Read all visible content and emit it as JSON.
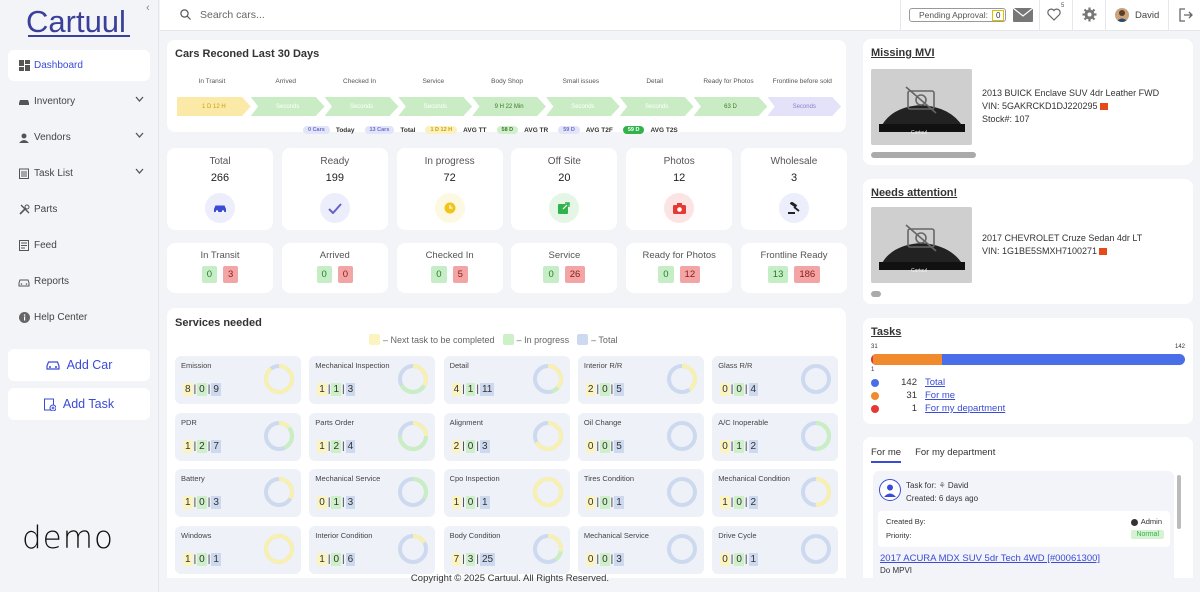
{
  "brand": {
    "logo_text": "Cartuul",
    "demo_text": "demo"
  },
  "sidebar": {
    "items": [
      {
        "label": "Dashboard",
        "icon": "dashboard-icon",
        "active": true
      },
      {
        "label": "Inventory",
        "icon": "car-icon",
        "expandable": true
      },
      {
        "label": "Vendors",
        "icon": "person-icon",
        "expandable": true
      },
      {
        "label": "Task List",
        "icon": "clipboard-icon",
        "expandable": true
      },
      {
        "label": "Parts",
        "icon": "tools-icon"
      },
      {
        "label": "Feed",
        "icon": "feed-icon"
      },
      {
        "label": "Reports",
        "icon": "car-report-icon"
      },
      {
        "label": "Help Center",
        "icon": "info-icon"
      }
    ],
    "add_car": "Add Car",
    "add_task": "Add Task"
  },
  "topbar": {
    "search_placeholder": "Search cars...",
    "pending_label": "Pending Approval:",
    "pending_value": "0",
    "heart_count": "5",
    "user_name": "David"
  },
  "recon": {
    "title": "Cars Reconed Last 30 Days",
    "stages": [
      {
        "label": "In Transit",
        "value": "1 D 12 H",
        "color": "#fbe9a8",
        "text_color": "#c9a400"
      },
      {
        "label": "Arrived",
        "value": "Seconds",
        "color": "#c9ecc4",
        "text_color": "#ffffff"
      },
      {
        "label": "Checked In",
        "value": "Seconds",
        "color": "#c9ecc4",
        "text_color": "#ffffff"
      },
      {
        "label": "Service",
        "value": "Seconds",
        "color": "#c9ecc4",
        "text_color": "#ffffff"
      },
      {
        "label": "Body Shop",
        "value": "9 H 22 Min",
        "color": "#c9ecc4",
        "text_color": "#3a7a2b"
      },
      {
        "label": "Small issues",
        "value": "Seconds",
        "color": "#c9ecc4",
        "text_color": "#ffffff"
      },
      {
        "label": "Detail",
        "value": "Seconds",
        "color": "#c9ecc4",
        "text_color": "#ffffff"
      },
      {
        "label": "Ready for Photos",
        "value": "63 D",
        "color": "#c9ecc4",
        "text_color": "#3a7a2b"
      },
      {
        "label": "Frontline before sold",
        "value": "Seconds",
        "color": "#e4e2f8",
        "text_color": "#8a80d0"
      }
    ],
    "summary": [
      {
        "pill": "0 Cars",
        "text": "Today",
        "bg": "#e2e4f7",
        "fg": "#6a6fd0"
      },
      {
        "pill": "13 Cars",
        "text": "Total",
        "bg": "#e2e4f7",
        "fg": "#6a6fd0"
      },
      {
        "pill": "1 D 12 H",
        "text": "AVG TT",
        "bg": "#fbf0c0",
        "fg": "#c9a400"
      },
      {
        "pill": "58 D",
        "text": "AVG TR",
        "bg": "#d0efcb",
        "fg": "#3a7a2b"
      },
      {
        "pill": "59 D",
        "text": "AVG T2F",
        "bg": "#e2e4f7",
        "fg": "#6a6fd0"
      },
      {
        "pill": "59 D",
        "text": "AVG T2S",
        "bg": "#2fb34a",
        "fg": "#ffffff"
      }
    ]
  },
  "stats": [
    {
      "label": "Total",
      "value": "266",
      "icon": "car-icon",
      "circle": "#eceefc",
      "color": "#3a4bd6"
    },
    {
      "label": "Ready",
      "value": "199",
      "icon": "check-icon",
      "circle": "#eceefc",
      "color": "#6b5fd0"
    },
    {
      "label": "In progress",
      "value": "72",
      "icon": "progress-icon",
      "circle": "#fdf8e2",
      "color": "#f0c419"
    },
    {
      "label": "Off Site",
      "value": "20",
      "icon": "external-icon",
      "circle": "#e6f6e6",
      "color": "#2fb34a"
    },
    {
      "label": "Photos",
      "value": "12",
      "icon": "camera-icon",
      "circle": "#fde4e4",
      "color": "#e53935"
    },
    {
      "label": "Wholesale",
      "value": "3",
      "icon": "gavel-icon",
      "circle": "#eceefc",
      "color": "#222"
    }
  ],
  "pipeline_counts": [
    {
      "label": "In Transit",
      "green": "0",
      "red": "3"
    },
    {
      "label": "Arrived",
      "green": "0",
      "red": "0"
    },
    {
      "label": "Checked In",
      "green": "0",
      "red": "5"
    },
    {
      "label": "Service",
      "green": "0",
      "red": "26"
    },
    {
      "label": "Ready for Photos",
      "green": "0",
      "red": "12"
    },
    {
      "label": "Frontline Ready",
      "green": "13",
      "red": "186"
    }
  ],
  "services": {
    "title": "Services needed",
    "legend": [
      {
        "label": "– Next task to be completed",
        "color": "#fbf4c0"
      },
      {
        "label": "– In progress",
        "color": "#cdf0c8"
      },
      {
        "label": "– Total",
        "color": "#cdd9ee"
      }
    ],
    "items": [
      {
        "name": "Emission",
        "next": "8",
        "prog": "0",
        "total": "9"
      },
      {
        "name": "Mechanical Inspection",
        "next": "1",
        "prog": "1",
        "total": "3"
      },
      {
        "name": "Detail",
        "next": "4",
        "prog": "1",
        "total": "11"
      },
      {
        "name": "Interior R/R",
        "next": "2",
        "prog": "0",
        "total": "5"
      },
      {
        "name": "Glass R/R",
        "next": "0",
        "prog": "0",
        "total": "4"
      },
      {
        "name": "PDR",
        "next": "1",
        "prog": "2",
        "total": "7"
      },
      {
        "name": "Parts Order",
        "next": "1",
        "prog": "2",
        "total": "4"
      },
      {
        "name": "Alignment",
        "next": "2",
        "prog": "0",
        "total": "3"
      },
      {
        "name": "Oil Change",
        "next": "0",
        "prog": "0",
        "total": "5"
      },
      {
        "name": "A/C Inoperable",
        "next": "0",
        "prog": "1",
        "total": "2"
      },
      {
        "name": "Battery",
        "next": "1",
        "prog": "0",
        "total": "3"
      },
      {
        "name": "Mechanical Service",
        "next": "0",
        "prog": "1",
        "total": "3"
      },
      {
        "name": "Cpo Inspection",
        "next": "1",
        "prog": "0",
        "total": "1"
      },
      {
        "name": "Tires Condition",
        "next": "0",
        "prog": "0",
        "total": "1"
      },
      {
        "name": "Mechanical Condition",
        "next": "1",
        "prog": "0",
        "total": "2"
      },
      {
        "name": "Windows",
        "next": "1",
        "prog": "0",
        "total": "1"
      },
      {
        "name": "Interior Condition",
        "next": "1",
        "prog": "0",
        "total": "6"
      },
      {
        "name": "Body Condition",
        "next": "7",
        "prog": "3",
        "total": "25"
      },
      {
        "name": "Mechanical Service",
        "next": "0",
        "prog": "0",
        "total": "3"
      },
      {
        "name": "Drive Cycle",
        "next": "0",
        "prog": "0",
        "total": "1"
      }
    ]
  },
  "footer": "Copyright © 2025 Cartuul. All Rights Reserved.",
  "missing_mvi": {
    "title": "Missing MVI",
    "car": "2013 BUICK Enclave SUV 4dr Leather FWD",
    "vin": "VIN: 5GAKRCKD1DJ220295",
    "stock": "Stock#: 107",
    "image_label": "Cartuul"
  },
  "needs_attention": {
    "title": "Needs attention!",
    "car": "2017 CHEVROLET Cruze Sedan 4dr LT",
    "vin": "VIN: 1G1BE5SMXH7100271",
    "image_label": "Cartuul"
  },
  "tasks": {
    "title": "Tasks",
    "bar_left": "31",
    "bar_right": "142",
    "bar_below": "1",
    "total": 142,
    "for_me": 31,
    "my_dept": 1,
    "legend": [
      {
        "count": "142",
        "label": "Total",
        "color": "#4a6ee8"
      },
      {
        "count": "31",
        "label": "For me",
        "color": "#f08a2c"
      },
      {
        "count": "1",
        "label": "For my department",
        "color": "#e53935"
      }
    ]
  },
  "task_panel": {
    "tabs": [
      "For me",
      "For my department"
    ],
    "task_for_label": "Task for:",
    "task_for": "David",
    "created": "Created: 6 days ago",
    "created_by_label": "Created By:",
    "created_by": "Admin",
    "priority_label": "Priority:",
    "priority": "Normal",
    "link": "2017 ACURA MDX SUV 5dr Tech 4WD [#00061300]",
    "task_name": "Do MPVI"
  }
}
